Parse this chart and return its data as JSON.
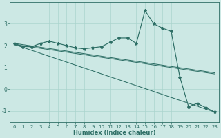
{
  "title": "",
  "xlabel": "Humidex (Indice chaleur)",
  "ylabel": "",
  "background_color": "#cce8e4",
  "grid_color": "#aad4ce",
  "line_color": "#2d6e65",
  "x_values": [
    0,
    1,
    2,
    3,
    4,
    5,
    6,
    7,
    8,
    9,
    10,
    11,
    12,
    13,
    14,
    15,
    16,
    17,
    18,
    19,
    20,
    21,
    22,
    23
  ],
  "main_series": [
    2.1,
    1.95,
    1.95,
    2.1,
    2.2,
    2.1,
    2.0,
    1.9,
    1.85,
    1.9,
    1.95,
    2.15,
    2.35,
    2.35,
    2.1,
    3.6,
    3.0,
    2.8,
    2.65,
    0.55,
    -0.8,
    -0.65,
    -0.85,
    -1.05
  ],
  "trend1_x": [
    0,
    23
  ],
  "trend1_y": [
    2.1,
    0.75
  ],
  "trend2_x": [
    0,
    23
  ],
  "trend2_y": [
    2.05,
    -1.05
  ],
  "trend3_x": [
    0,
    23
  ],
  "trend3_y": [
    2.05,
    0.7
  ],
  "ylim": [
    -1.5,
    4.0
  ],
  "xlim": [
    -0.5,
    23.5
  ],
  "yticks": [
    -1,
    0,
    1,
    2,
    3
  ],
  "xticks": [
    0,
    1,
    2,
    3,
    4,
    5,
    6,
    7,
    8,
    9,
    10,
    11,
    12,
    13,
    14,
    15,
    16,
    17,
    18,
    19,
    20,
    21,
    22,
    23
  ]
}
